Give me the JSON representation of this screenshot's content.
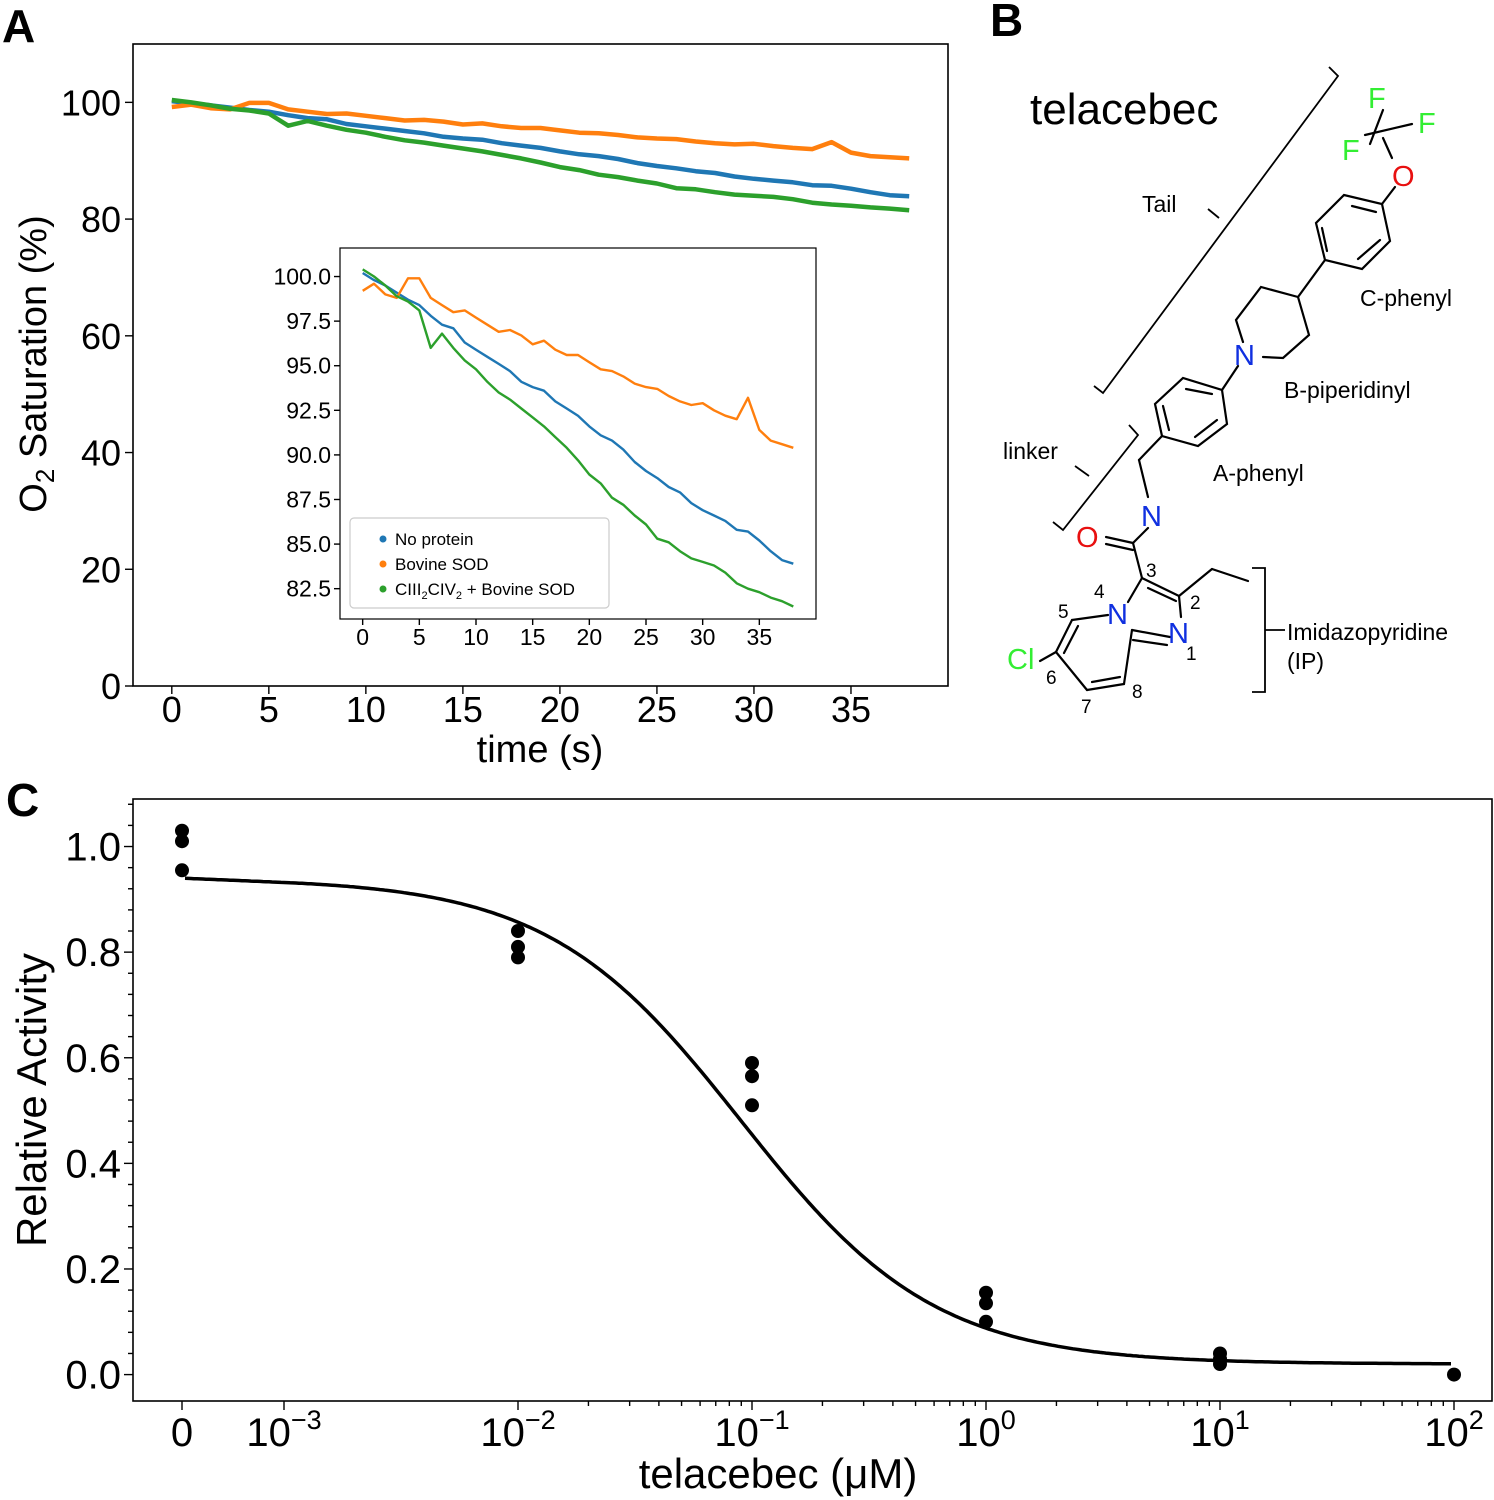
{
  "panels": {
    "a": "A",
    "b": "B",
    "c": "C"
  },
  "chart_data": [
    {
      "id": "A-main",
      "type": "line",
      "title": "",
      "xlabel": "time (s)",
      "ylabel_parts": [
        "O",
        "2",
        " Saturation (%)"
      ],
      "xlim": [
        -2,
        40
      ],
      "ylim": [
        0,
        110
      ],
      "x_ticks": [
        0,
        5,
        10,
        15,
        20,
        25,
        30,
        35
      ],
      "y_ticks": [
        0,
        20,
        40,
        60,
        80,
        100
      ],
      "series": [
        {
          "name": "No protein",
          "color": "#1f77b4",
          "x": [
            0,
            1,
            2,
            3,
            4,
            5,
            6,
            7,
            8,
            9,
            10,
            11,
            12,
            13,
            14,
            15,
            16,
            17,
            18,
            19,
            20,
            21,
            22,
            23,
            24,
            25,
            26,
            27,
            28,
            29,
            30,
            31,
            32,
            33,
            34,
            35,
            36,
            37,
            38
          ],
          "values": [
            100.2,
            99.8,
            99.5,
            99.1,
            98.7,
            98.4,
            97.8,
            97.3,
            97.1,
            96.3,
            95.9,
            95.5,
            95.1,
            94.7,
            94.1,
            93.8,
            93.6,
            93.0,
            92.6,
            92.2,
            91.6,
            91.1,
            90.8,
            90.3,
            89.6,
            89.1,
            88.7,
            88.2,
            87.9,
            87.3,
            86.9,
            86.6,
            86.3,
            85.8,
            85.7,
            85.2,
            84.6,
            84.1,
            83.9
          ]
        },
        {
          "name": "Bovine SOD",
          "color": "#ff7f0e",
          "x": [
            0,
            1,
            2,
            3,
            4,
            5,
            6,
            7,
            8,
            9,
            10,
            11,
            12,
            13,
            14,
            15,
            16,
            17,
            18,
            19,
            20,
            21,
            22,
            23,
            24,
            25,
            26,
            27,
            28,
            29,
            30,
            31,
            32,
            33,
            34,
            35,
            36,
            37,
            38
          ],
          "values": [
            99.2,
            99.6,
            99.0,
            98.8,
            99.9,
            99.9,
            98.8,
            98.4,
            98.0,
            98.1,
            97.7,
            97.3,
            96.9,
            97.0,
            96.7,
            96.2,
            96.4,
            95.9,
            95.6,
            95.6,
            95.2,
            94.8,
            94.7,
            94.4,
            94.0,
            93.8,
            93.7,
            93.3,
            93.0,
            92.8,
            92.9,
            92.5,
            92.2,
            92.0,
            93.2,
            91.4,
            90.8,
            90.6,
            90.4
          ]
        },
        {
          "name": "CIII2CIV2 + Bovine SOD",
          "color": "#2ca02c",
          "x": [
            0,
            1,
            2,
            3,
            4,
            5,
            6,
            7,
            8,
            9,
            10,
            11,
            12,
            13,
            14,
            15,
            16,
            17,
            18,
            19,
            20,
            21,
            22,
            23,
            24,
            25,
            26,
            27,
            28,
            29,
            30,
            31,
            32,
            33,
            34,
            35,
            36,
            37,
            38
          ],
          "values": [
            100.4,
            100.0,
            99.5,
            98.9,
            98.6,
            98.1,
            96.0,
            96.8,
            96.0,
            95.3,
            94.8,
            94.1,
            93.5,
            93.1,
            92.6,
            92.1,
            91.6,
            91.0,
            90.4,
            89.7,
            88.9,
            88.4,
            87.6,
            87.2,
            86.6,
            86.1,
            85.3,
            85.1,
            84.6,
            84.2,
            84.0,
            83.8,
            83.4,
            82.8,
            82.5,
            82.3,
            82.0,
            81.8,
            81.5
          ]
        }
      ]
    },
    {
      "id": "A-inset",
      "type": "line",
      "xlim": [
        -2,
        40
      ],
      "ylim": [
        80.8,
        101.6
      ],
      "x_ticks": [
        0,
        5,
        10,
        15,
        20,
        25,
        30,
        35
      ],
      "y_ticks": [
        82.5,
        85.0,
        87.5,
        90.0,
        92.5,
        95.0,
        97.5,
        100.0
      ],
      "legend": {
        "position": "lower-left",
        "entries": [
          {
            "label": "No protein",
            "color": "#1f77b4"
          },
          {
            "label": "Bovine SOD",
            "color": "#ff7f0e"
          },
          {
            "label_parts": [
              "CIII",
              "2",
              "CIV",
              "2",
              " + Bovine SOD"
            ],
            "color": "#2ca02c"
          }
        ]
      },
      "series_ref": "A-main"
    },
    {
      "id": "C",
      "type": "scatter",
      "title": "",
      "xlabel": "telacebec (μM)",
      "ylabel": "Relative Activity",
      "xscale": "symlog",
      "ylim": [
        -0.05,
        1.09
      ],
      "y_ticks": [
        0.0,
        0.2,
        0.4,
        0.6,
        0.8,
        1.0
      ],
      "x_ticks": [
        {
          "value": 0,
          "base": "0",
          "exp": ""
        },
        {
          "value": 0.001,
          "base": "10",
          "exp": "−3"
        },
        {
          "value": 0.01,
          "base": "10",
          "exp": "−2"
        },
        {
          "value": 0.1,
          "base": "10",
          "exp": "−1"
        },
        {
          "value": 1,
          "base": "10",
          "exp": "0"
        },
        {
          "value": 10,
          "base": "10",
          "exp": "1"
        },
        {
          "value": 100,
          "base": "10",
          "exp": "2"
        }
      ],
      "points": [
        {
          "x": 0,
          "y": 1.03
        },
        {
          "x": 0,
          "y": 1.01
        },
        {
          "x": 0,
          "y": 0.955
        },
        {
          "x": 0.01,
          "y": 0.84
        },
        {
          "x": 0.01,
          "y": 0.81
        },
        {
          "x": 0.01,
          "y": 0.79
        },
        {
          "x": 0.1,
          "y": 0.59
        },
        {
          "x": 0.1,
          "y": 0.565
        },
        {
          "x": 0.1,
          "y": 0.51
        },
        {
          "x": 1,
          "y": 0.155
        },
        {
          "x": 1,
          "y": 0.135
        },
        {
          "x": 1,
          "y": 0.1
        },
        {
          "x": 10,
          "y": 0.04
        },
        {
          "x": 10,
          "y": 0.03
        },
        {
          "x": 10,
          "y": 0.02
        },
        {
          "x": 100,
          "y": 0.0
        }
      ],
      "fit": {
        "type": "four-parameter logistic",
        "top": 0.94,
        "bottom": 0.02,
        "ic50": 0.09,
        "hill": 1.05
      }
    }
  ],
  "structure": {
    "name": "telacebec",
    "regions": [
      "Tail",
      "linker",
      "Imidazopyridine",
      "(IP)"
    ],
    "groups": [
      "C-phenyl",
      "B-piperidinyl",
      "A-phenyl"
    ],
    "atoms": {
      "fluorine": "F",
      "oxygen": "O",
      "nitrogen": "N",
      "chlorine": "Cl"
    },
    "ring_numbers": [
      "1",
      "2",
      "3",
      "4",
      "5",
      "6",
      "7",
      "8"
    ],
    "colors": {
      "halogen": "#33ee33",
      "oxygen": "#e81010",
      "nitrogen": "#1030e0"
    }
  }
}
